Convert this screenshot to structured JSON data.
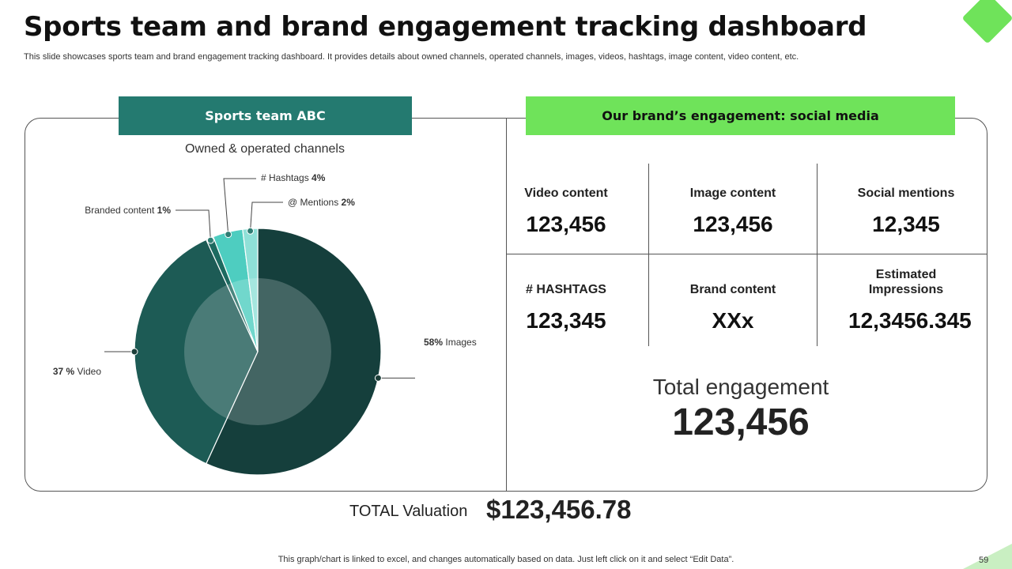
{
  "header": {
    "title": "Sports team and brand engagement tracking dashboard",
    "subtitle": "This slide showcases sports team and brand engagement tracking dashboard. It provides details about owned channels, operated channels, images, videos, hashtags, image content, video content, etc."
  },
  "left_panel": {
    "heading": "Sports team ABC",
    "chart_title": "Owned & operated channels"
  },
  "right_panel": {
    "heading": "Our brand’s engagement: social media",
    "metrics": [
      {
        "label": "Video content",
        "value": "123,456"
      },
      {
        "label": "Image content",
        "value": "123,456"
      },
      {
        "label": "Social mentions",
        "value": "12,345"
      },
      {
        "label": "# HASHTAGS",
        "value": "123,345"
      },
      {
        "label": "Brand content",
        "value": "XXx"
      },
      {
        "label": "Estimated Impressions",
        "value": "12,3456.345"
      }
    ],
    "total_engagement_label": "Total engagement",
    "total_engagement_value": "123,456"
  },
  "valuation": {
    "label": "TOTAL  Valuation",
    "value": "$123,456.78"
  },
  "footer": {
    "note": "This graph/chart is linked to excel,  and changes automatically based on data. Just left click on it and select “Edit Data”.",
    "page_number": "59"
  },
  "chart_data": {
    "type": "pie",
    "title": "Owned & operated channels",
    "categories": [
      "Images",
      "Video",
      "Branded content",
      "Hashtags",
      "Mentions"
    ],
    "values": [
      58,
      37,
      1,
      4,
      2
    ],
    "label_prefixes": [
      "",
      "",
      "",
      "#",
      "@"
    ],
    "label_names": [
      "Images",
      "Video",
      "Branded  content",
      "Hashtags",
      "Mentions"
    ],
    "value_labels": [
      "58%",
      "37 %",
      "1%",
      "4%",
      "2%"
    ],
    "colors": [
      "#153f3c",
      "#1d5b55",
      "#1d6a60",
      "#4ecdc0",
      "#8fe0d7"
    ]
  }
}
